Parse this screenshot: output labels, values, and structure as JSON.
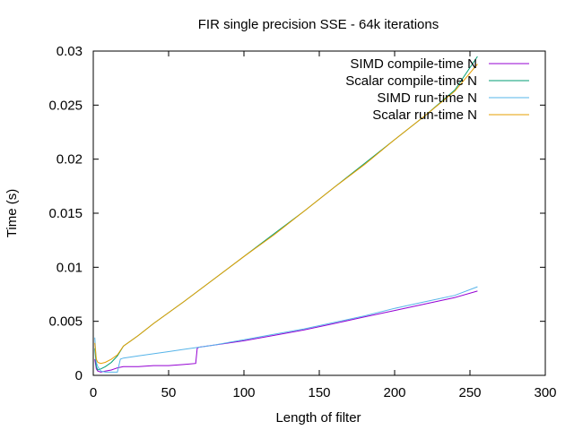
{
  "chart_data": {
    "type": "line",
    "title": "FIR single precision SSE - 64k iterations",
    "xlabel": "Length of filter",
    "ylabel": "Time (s)",
    "xlim": [
      0,
      300
    ],
    "ylim": [
      0,
      0.03
    ],
    "xticks": [
      0,
      50,
      100,
      150,
      200,
      250,
      300
    ],
    "xtick_labels": [
      "0",
      "50",
      "100",
      "150",
      "200",
      "250",
      "300"
    ],
    "yticks": [
      0,
      0.005,
      0.01,
      0.015,
      0.02,
      0.025,
      0.03
    ],
    "ytick_labels": [
      "0",
      "0.005",
      "0.01",
      "0.015",
      "0.02",
      "0.025",
      "0.03"
    ],
    "grid": false,
    "legend_position": "top-right",
    "series": [
      {
        "name": "SIMD compile-time N",
        "color": "#9400d3",
        "x": [
          1,
          2,
          3,
          5,
          8,
          12,
          16,
          20,
          30,
          40,
          50,
          60,
          68,
          69,
          70,
          80,
          100,
          120,
          140,
          160,
          180,
          200,
          220,
          240,
          255
        ],
        "y": [
          0.0015,
          0.0006,
          0.0004,
          0.0003,
          0.0004,
          0.0005,
          0.0007,
          0.0008,
          0.0008,
          0.0009,
          0.0009,
          0.001,
          0.0011,
          0.0025,
          0.0026,
          0.0028,
          0.0032,
          0.0037,
          0.0042,
          0.0048,
          0.0054,
          0.006,
          0.0066,
          0.0072,
          0.0078
        ]
      },
      {
        "name": "Scalar compile-time N",
        "color": "#009e73",
        "x": [
          1,
          2,
          3,
          5,
          8,
          12,
          16,
          20,
          30,
          40,
          50,
          60,
          80,
          100,
          120,
          140,
          160,
          180,
          200,
          220,
          240,
          255
        ],
        "y": [
          0.0025,
          0.0008,
          0.0005,
          0.0006,
          0.0008,
          0.0012,
          0.0018,
          0.0027,
          0.0037,
          0.0048,
          0.0058,
          0.0068,
          0.0089,
          0.011,
          0.0131,
          0.0152,
          0.0174,
          0.0196,
          0.0218,
          0.024,
          0.0264,
          0.0295
        ]
      },
      {
        "name": "SIMD run-time N",
        "color": "#56b4e9",
        "x": [
          1,
          2,
          3,
          5,
          8,
          12,
          16,
          18,
          20,
          30,
          40,
          50,
          60,
          70,
          80,
          100,
          120,
          140,
          160,
          180,
          200,
          220,
          240,
          255
        ],
        "y": [
          0.0035,
          0.0012,
          0.0008,
          0.0004,
          0.0003,
          0.0003,
          0.0003,
          0.0015,
          0.0016,
          0.0018,
          0.002,
          0.0022,
          0.0024,
          0.0026,
          0.0028,
          0.0033,
          0.0038,
          0.0043,
          0.0049,
          0.0055,
          0.0062,
          0.0068,
          0.0074,
          0.0082
        ]
      },
      {
        "name": "Scalar run-time N",
        "color": "#e69f00",
        "x": [
          1,
          2,
          3,
          5,
          8,
          12,
          16,
          20,
          30,
          40,
          50,
          60,
          80,
          100,
          120,
          140,
          160,
          180,
          200,
          220,
          240,
          255
        ],
        "y": [
          0.003,
          0.0015,
          0.0012,
          0.0011,
          0.0012,
          0.0015,
          0.0019,
          0.0027,
          0.0037,
          0.0048,
          0.0058,
          0.0068,
          0.0089,
          0.011,
          0.013,
          0.0152,
          0.0174,
          0.0195,
          0.0218,
          0.024,
          0.0263,
          0.0288
        ]
      }
    ]
  }
}
